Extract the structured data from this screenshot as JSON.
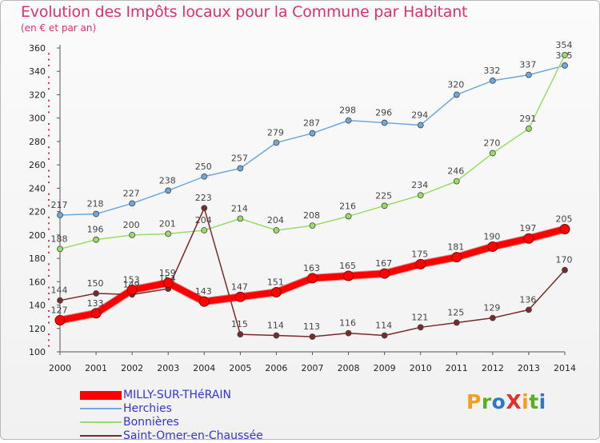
{
  "page": {
    "title": "Evolution des Impôts locaux pour la Commune par Habitant",
    "subtitle": "(en € et par an)"
  },
  "logo": {
    "text": "ProXiti",
    "letters": [
      {
        "char": "P",
        "color": "#f0a020"
      },
      {
        "char": "r",
        "color": "#58b020"
      },
      {
        "char": "o",
        "color": "#2a7ac8"
      },
      {
        "char": "X",
        "color": "#e03030"
      },
      {
        "char": "i",
        "color": "#f0a020"
      },
      {
        "char": "t",
        "color": "#58b020"
      },
      {
        "char": "i",
        "color": "#2a7ac8"
      }
    ]
  },
  "chart_data": {
    "type": "line",
    "title": "Evolution des Impôts locaux pour la Commune par Habitant",
    "subtitle": "(en € et par an)",
    "x": [
      2000,
      2001,
      2002,
      2003,
      2004,
      2005,
      2006,
      2007,
      2008,
      2009,
      2010,
      2011,
      2012,
      2013,
      2014
    ],
    "ylim": [
      100,
      360
    ],
    "yticks": [
      100,
      120,
      140,
      160,
      180,
      200,
      220,
      240,
      260,
      280,
      300,
      320,
      340,
      360
    ],
    "grid": false,
    "legend_position": "bottom-left",
    "series": [
      {
        "name": "MILLY-SUR-THéRAIN",
        "color": "#ff0000",
        "values": [
          127,
          133,
          153,
          159,
          143,
          147,
          151,
          163,
          165,
          167,
          175,
          181,
          190,
          197,
          205
        ]
      },
      {
        "name": "Herchies",
        "color": "#6fa8dc",
        "values": [
          217,
          218,
          227,
          238,
          250,
          257,
          279,
          287,
          298,
          296,
          294,
          320,
          332,
          337,
          345
        ]
      },
      {
        "name": "Bonnières",
        "color": "#99dd66",
        "values": [
          188,
          196,
          200,
          201,
          204,
          214,
          204,
          208,
          216,
          225,
          234,
          246,
          270,
          291,
          354
        ]
      },
      {
        "name": "Saint-Omer-en-Chaussée",
        "color": "#7a2a2a",
        "values": [
          144,
          150,
          149,
          154,
          223,
          115,
          114,
          113,
          116,
          114,
          121,
          125,
          129,
          136,
          170
        ]
      }
    ]
  }
}
